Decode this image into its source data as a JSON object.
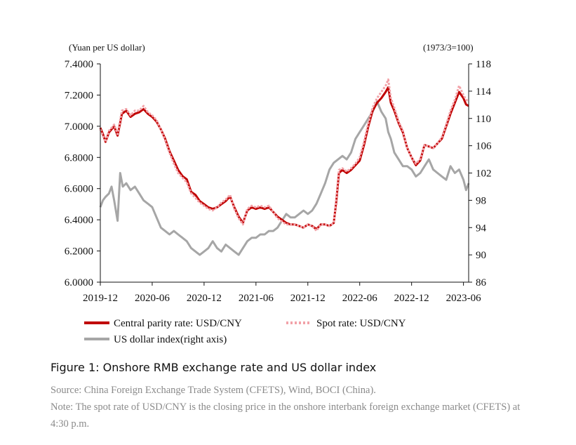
{
  "caption": "Figure 1: Onshore RMB exchange rate and US dollar index",
  "source": "Source: China Foreign Exchange Trade System (CFETS), Wind, BOCI (China).",
  "note": "Note: The spot rate of USD/CNY is the closing price in the onshore interbank foreign exchange market (CFETS) at 4:30 p.m.",
  "chart_data": {
    "type": "line",
    "title": "",
    "left_axis_label": "(Yuan per US dollar)",
    "right_axis_label": "(1973/3=100)",
    "ylim_left": [
      6.0,
      7.4
    ],
    "ylim_right": [
      86,
      118
    ],
    "left_ticks": [
      "7.4000",
      "7.2000",
      "7.0000",
      "6.8000",
      "6.6000",
      "6.4000",
      "6.2000",
      "6.0000"
    ],
    "right_ticks": [
      "118",
      "114",
      "110",
      "106",
      "102",
      "98",
      "94",
      "90",
      "86"
    ],
    "x_ticks": [
      "2019-12",
      "2020-06",
      "2020-12",
      "2021-06",
      "2021-12",
      "2022-06",
      "2022-12",
      "2023-06"
    ],
    "x_tick_positions": [
      0,
      6,
      12,
      18,
      24,
      30,
      36,
      42
    ],
    "x_range": [
      0,
      42.6
    ],
    "colors": {
      "central": "#c00000",
      "spot": "#f2a2a8",
      "dxy": "#a6a6a6"
    },
    "series": [
      {
        "name": "Central parity rate: USD/CNY",
        "axis": "left",
        "x": [
          0,
          0.3,
          0.6,
          1,
          1.3,
          1.6,
          2,
          2.5,
          3,
          3.5,
          4,
          4.5,
          5,
          5.5,
          6,
          6.5,
          7,
          7.5,
          8,
          8.5,
          9,
          9.5,
          10,
          10.5,
          11,
          11.5,
          12,
          12.5,
          13,
          13.5,
          14,
          14.5,
          15,
          15.5,
          16,
          16.5,
          17,
          17.5,
          18,
          18.5,
          19,
          19.5,
          20,
          20.5,
          21,
          21.5,
          22,
          22.5,
          23,
          23.5,
          24,
          24.5,
          25,
          25.5,
          26,
          26.5,
          27,
          27.3,
          27.6,
          28,
          28.5,
          29,
          29.5,
          30,
          30.5,
          31,
          31.5,
          32,
          32.5,
          33,
          33.3,
          33.6,
          34,
          34.5,
          35,
          35.5,
          36,
          36.5,
          37,
          37.5,
          38,
          38.5,
          39,
          39.5,
          40,
          40.5,
          41,
          41.5,
          42,
          42.3,
          42.6
        ],
        "values": [
          6.99,
          6.95,
          6.9,
          6.96,
          6.98,
          7.0,
          6.94,
          7.08,
          7.1,
          7.06,
          7.08,
          7.09,
          7.11,
          7.08,
          7.06,
          7.03,
          6.98,
          6.92,
          6.84,
          6.78,
          6.72,
          6.68,
          6.66,
          6.58,
          6.56,
          6.52,
          6.5,
          6.48,
          6.47,
          6.48,
          6.5,
          6.52,
          6.55,
          6.48,
          6.42,
          6.38,
          6.46,
          6.48,
          6.47,
          6.48,
          6.47,
          6.48,
          6.45,
          6.42,
          6.4,
          6.38,
          6.37,
          6.37,
          6.36,
          6.35,
          6.37,
          6.36,
          6.34,
          6.37,
          6.37,
          6.36,
          6.38,
          6.52,
          6.7,
          6.72,
          6.7,
          6.72,
          6.75,
          6.78,
          6.88,
          7.0,
          7.1,
          7.15,
          7.18,
          7.22,
          7.25,
          7.15,
          7.1,
          7.02,
          6.96,
          6.86,
          6.8,
          6.75,
          6.78,
          6.88,
          6.87,
          6.86,
          6.89,
          6.92,
          7.0,
          7.08,
          7.15,
          7.22,
          7.18,
          7.14,
          7.13
        ]
      },
      {
        "name": "Spot rate: USD/CNY",
        "axis": "left",
        "x": [
          0,
          0.3,
          0.6,
          1,
          1.3,
          1.6,
          2,
          2.5,
          3,
          3.5,
          4,
          4.5,
          5,
          5.5,
          6,
          6.5,
          7,
          7.5,
          8,
          8.5,
          9,
          9.5,
          10,
          10.5,
          11,
          11.5,
          12,
          12.5,
          13,
          13.5,
          14,
          14.5,
          15,
          15.5,
          16,
          16.5,
          17,
          17.5,
          18,
          18.5,
          19,
          19.5,
          20,
          20.5,
          21,
          21.5,
          22,
          22.5,
          23,
          23.5,
          24,
          24.5,
          25,
          25.5,
          26,
          26.5,
          27,
          27.3,
          27.6,
          28,
          28.5,
          29,
          29.5,
          30,
          30.5,
          31,
          31.5,
          32,
          32.5,
          33,
          33.3,
          33.6,
          34,
          34.5,
          35,
          35.5,
          36,
          36.5,
          37,
          37.5,
          38,
          38.5,
          39,
          39.5,
          40,
          40.5,
          41,
          41.5,
          42,
          42.3,
          42.6
        ],
        "values": [
          6.98,
          6.94,
          6.9,
          6.97,
          6.99,
          7.01,
          6.95,
          7.1,
          7.11,
          7.07,
          7.1,
          7.1,
          7.13,
          7.09,
          7.07,
          7.04,
          6.98,
          6.91,
          6.83,
          6.76,
          6.7,
          6.67,
          6.64,
          6.57,
          6.54,
          6.51,
          6.49,
          6.47,
          6.46,
          6.48,
          6.51,
          6.53,
          6.56,
          6.47,
          6.41,
          6.37,
          6.47,
          6.49,
          6.48,
          6.49,
          6.48,
          6.49,
          6.45,
          6.41,
          6.39,
          6.37,
          6.37,
          6.37,
          6.36,
          6.35,
          6.37,
          6.36,
          6.33,
          6.37,
          6.37,
          6.36,
          6.38,
          6.54,
          6.72,
          6.73,
          6.71,
          6.73,
          6.76,
          6.8,
          6.9,
          7.02,
          7.12,
          7.18,
          7.22,
          7.26,
          7.3,
          7.18,
          7.12,
          7.03,
          6.97,
          6.86,
          6.8,
          6.76,
          6.79,
          6.88,
          6.87,
          6.86,
          6.89,
          6.93,
          7.01,
          7.1,
          7.17,
          7.26,
          7.2,
          7.17,
          7.16
        ]
      },
      {
        "name": "US dollar index(right axis)",
        "axis": "right",
        "x": [
          0,
          0.3,
          0.6,
          1,
          1.3,
          1.6,
          2,
          2.3,
          2.6,
          3,
          3.5,
          4,
          4.5,
          5,
          5.5,
          6,
          6.5,
          7,
          7.5,
          8,
          8.5,
          9,
          9.5,
          10,
          10.5,
          11,
          11.5,
          12,
          12.5,
          13,
          13.5,
          14,
          14.5,
          15,
          15.5,
          16,
          16.5,
          17,
          17.5,
          18,
          18.5,
          19,
          19.5,
          20,
          20.5,
          21,
          21.5,
          22,
          22.5,
          23,
          23.5,
          24,
          24.5,
          25,
          25.5,
          26,
          26.5,
          27,
          27.5,
          28,
          28.5,
          29,
          29.5,
          30,
          30.5,
          31,
          31.5,
          32,
          32.5,
          33,
          33.3,
          33.6,
          34,
          34.5,
          35,
          35.5,
          36,
          36.5,
          37,
          37.5,
          38,
          38.5,
          39,
          39.5,
          40,
          40.5,
          41,
          41.5,
          42,
          42.3,
          42.6
        ],
        "values": [
          97,
          98,
          98.5,
          99,
          100,
          98,
          95,
          102,
          100,
          100.5,
          99.5,
          100,
          99,
          98,
          97.5,
          97,
          95.5,
          94,
          93.5,
          93,
          93.5,
          93,
          92.5,
          92,
          91,
          90.5,
          90,
          90.5,
          91,
          92,
          91,
          90.5,
          91.5,
          91,
          90.5,
          90,
          91,
          92,
          92.5,
          92.5,
          93,
          93,
          93.5,
          93.5,
          94,
          95,
          96,
          95.5,
          95.5,
          96,
          96.5,
          96,
          96.5,
          97.5,
          99,
          100.5,
          102.5,
          103.5,
          104,
          104.5,
          104,
          105,
          107,
          108,
          109,
          110,
          111,
          112.5,
          111,
          110,
          108,
          107,
          105,
          104,
          103,
          103,
          102.5,
          101.5,
          102,
          103,
          104,
          102.5,
          102,
          101.5,
          101,
          103,
          102,
          102.5,
          101,
          99.5,
          100.5
        ]
      }
    ]
  }
}
